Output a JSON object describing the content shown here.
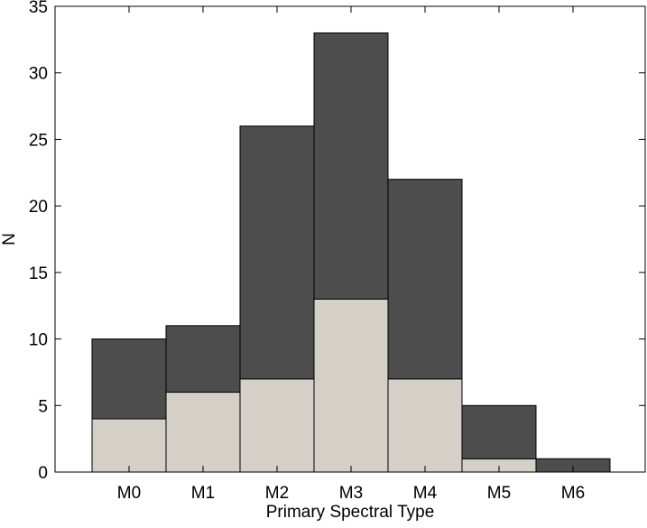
{
  "chart_data": {
    "type": "bar",
    "stacked": true,
    "categories": [
      "M0",
      "M1",
      "M2",
      "M3",
      "M4",
      "M5",
      "M6"
    ],
    "series": [
      {
        "values": [
          4,
          6,
          7,
          13,
          7,
          1,
          0
        ],
        "color": "#d4d0c8"
      },
      {
        "values": [
          6,
          5,
          19,
          20,
          15,
          4,
          1
        ],
        "color": "#4d4d4d"
      }
    ],
    "totals": [
      10,
      11,
      26,
      33,
      22,
      5,
      1
    ],
    "xlabel": "Primary Spectral Type",
    "ylabel": "N",
    "ylim": [
      0,
      35
    ],
    "yticks": [
      0,
      5,
      10,
      15,
      20,
      25,
      30,
      35
    ],
    "grid": false,
    "legend": "none"
  }
}
